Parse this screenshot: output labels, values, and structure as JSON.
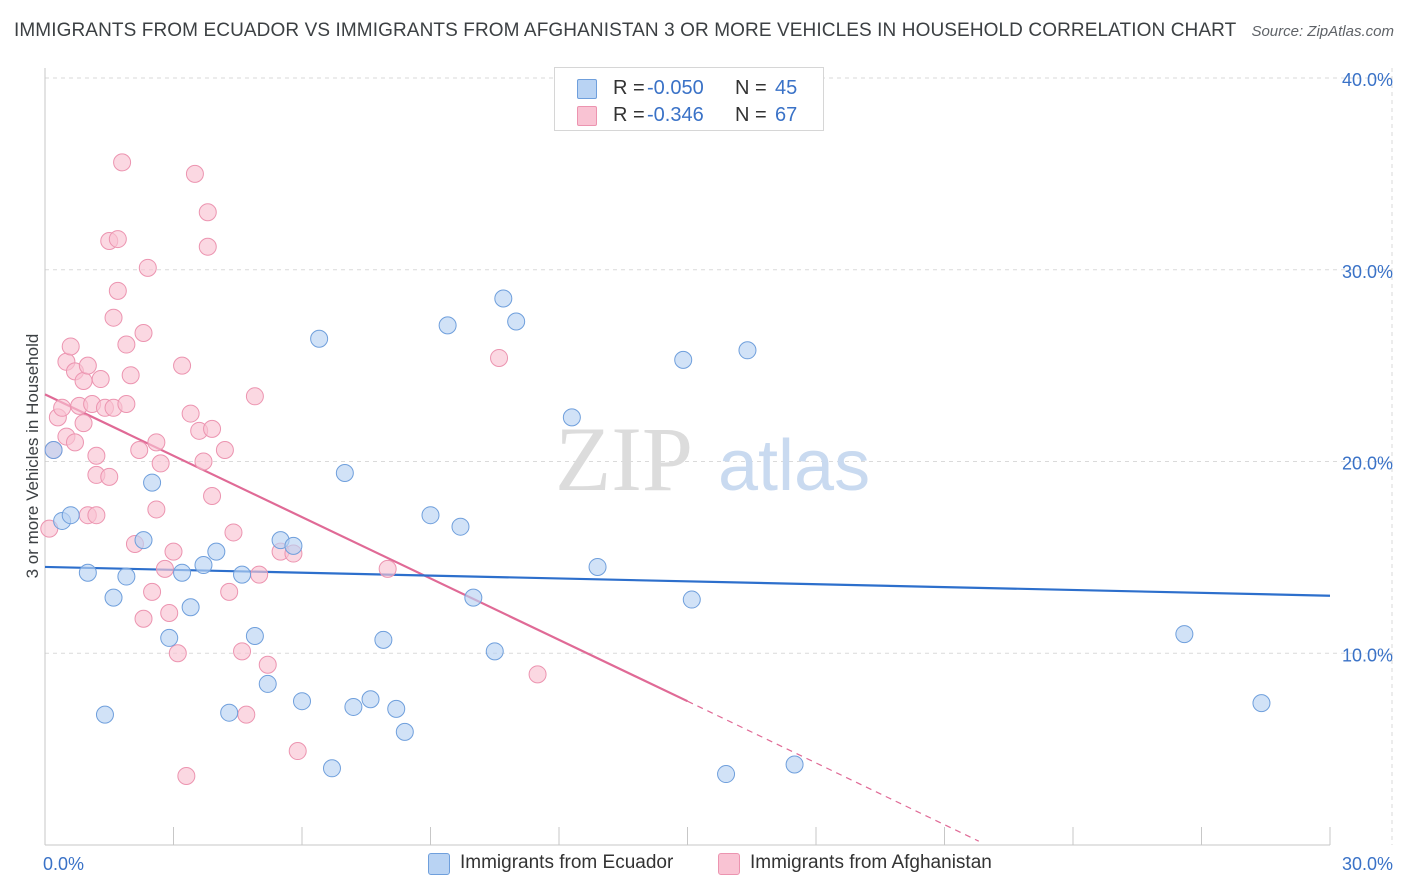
{
  "title": "IMMIGRANTS FROM ECUADOR VS IMMIGRANTS FROM AFGHANISTAN 3 OR MORE VEHICLES IN HOUSEHOLD CORRELATION CHART",
  "source": "Source: ZipAtlas.com",
  "watermark": {
    "zip": "ZIP",
    "atlas": "atlas"
  },
  "legend": {
    "rows": [
      {
        "r_label": "R =",
        "r_value": "-0.050",
        "n_label": "N =",
        "n_value": "45",
        "color": "#a9c8f0"
      },
      {
        "r_label": "R =",
        "r_value": "-0.346",
        "n_label": "N =",
        "n_value": "67",
        "color": "#f6b8cc"
      }
    ]
  },
  "bottom_legend": {
    "ecuador": "Immigrants from Ecuador",
    "afghanistan": "Immigrants from Afghanistan"
  },
  "colors": {
    "ecuador_fill": "#b9d3f3",
    "ecuador_stroke": "#6f9fdc",
    "ecuador_line": "#2d6fcc",
    "afghanistan_fill": "#f9c3d3",
    "afghanistan_stroke": "#ec94b0",
    "afghanistan_line": "#e06a96",
    "tick_text": "#3a72c7",
    "grid": "#dadada"
  },
  "chart_data": {
    "type": "scatter",
    "title": "IMMIGRANTS FROM ECUADOR VS IMMIGRANTS FROM AFGHANISTAN 3 OR MORE VEHICLES IN HOUSEHOLD CORRELATION CHART",
    "xlabel": "",
    "ylabel": "3 or more Vehicles in Household",
    "xlim": [
      0,
      30
    ],
    "ylim": [
      0,
      40
    ],
    "x_ticks_labels": [
      "0.0%",
      "30.0%"
    ],
    "y_ticks": [
      10,
      20,
      30,
      40
    ],
    "y_ticks_labels": [
      "10.0%",
      "20.0%",
      "30.0%",
      "40.0%"
    ],
    "grid": true,
    "legend_position": "top-center",
    "series": [
      {
        "name": "Immigrants from Ecuador",
        "trend": {
          "x": [
            0,
            30
          ],
          "y": [
            14.5,
            13.0
          ]
        },
        "points": [
          [
            0.2,
            20.6
          ],
          [
            0.4,
            16.9
          ],
          [
            1.0,
            14.2
          ],
          [
            1.4,
            6.8
          ],
          [
            1.6,
            12.9
          ],
          [
            1.9,
            14.0
          ],
          [
            2.3,
            15.9
          ],
          [
            2.5,
            18.9
          ],
          [
            2.9,
            10.8
          ],
          [
            3.2,
            14.2
          ],
          [
            3.4,
            12.4
          ],
          [
            3.7,
            14.6
          ],
          [
            4.0,
            15.3
          ],
          [
            4.3,
            6.9
          ],
          [
            4.6,
            14.1
          ],
          [
            4.9,
            10.9
          ],
          [
            5.2,
            8.4
          ],
          [
            5.5,
            15.9
          ],
          [
            5.8,
            15.6
          ],
          [
            6.0,
            7.5
          ],
          [
            6.4,
            26.4
          ],
          [
            6.7,
            4.0
          ],
          [
            7.0,
            19.4
          ],
          [
            7.2,
            7.2
          ],
          [
            7.6,
            7.6
          ],
          [
            7.9,
            10.7
          ],
          [
            8.2,
            7.1
          ],
          [
            8.4,
            5.9
          ],
          [
            9.0,
            17.2
          ],
          [
            9.4,
            27.1
          ],
          [
            9.7,
            16.6
          ],
          [
            10.0,
            12.9
          ],
          [
            10.5,
            10.1
          ],
          [
            10.7,
            28.5
          ],
          [
            11.0,
            27.3
          ],
          [
            12.3,
            22.3
          ],
          [
            12.9,
            14.5
          ],
          [
            14.9,
            25.3
          ],
          [
            15.1,
            12.8
          ],
          [
            15.9,
            3.7
          ],
          [
            16.4,
            25.8
          ],
          [
            17.5,
            4.2
          ],
          [
            26.6,
            11.0
          ],
          [
            28.4,
            7.4
          ],
          [
            0.6,
            17.2
          ]
        ]
      },
      {
        "name": "Immigrants from Afghanistan",
        "trend": {
          "x": [
            0,
            15
          ],
          "y": [
            23.5,
            7.5
          ]
        },
        "trend_dashed": {
          "x": [
            15,
            21.8
          ],
          "y": [
            7.5,
            0.2
          ]
        },
        "points": [
          [
            0.1,
            16.5
          ],
          [
            0.2,
            20.6
          ],
          [
            0.3,
            22.3
          ],
          [
            0.4,
            22.8
          ],
          [
            0.5,
            21.3
          ],
          [
            0.5,
            25.2
          ],
          [
            0.6,
            26.0
          ],
          [
            0.7,
            24.7
          ],
          [
            0.7,
            21.0
          ],
          [
            0.8,
            22.9
          ],
          [
            0.9,
            24.2
          ],
          [
            0.9,
            22.0
          ],
          [
            1.0,
            17.2
          ],
          [
            1.0,
            25.0
          ],
          [
            1.1,
            23.0
          ],
          [
            1.2,
            19.3
          ],
          [
            1.2,
            20.3
          ],
          [
            1.3,
            24.3
          ],
          [
            1.4,
            22.8
          ],
          [
            1.5,
            31.5
          ],
          [
            1.5,
            19.2
          ],
          [
            1.6,
            22.8
          ],
          [
            1.6,
            27.5
          ],
          [
            1.7,
            31.6
          ],
          [
            1.7,
            28.9
          ],
          [
            1.8,
            35.6
          ],
          [
            1.9,
            26.1
          ],
          [
            1.9,
            23.0
          ],
          [
            2.0,
            24.5
          ],
          [
            2.1,
            15.7
          ],
          [
            2.2,
            20.6
          ],
          [
            2.3,
            11.8
          ],
          [
            2.3,
            26.7
          ],
          [
            2.4,
            30.1
          ],
          [
            2.5,
            13.2
          ],
          [
            2.6,
            21.0
          ],
          [
            2.6,
            17.5
          ],
          [
            2.7,
            19.9
          ],
          [
            2.8,
            14.4
          ],
          [
            2.9,
            12.1
          ],
          [
            3.0,
            15.3
          ],
          [
            3.1,
            10.0
          ],
          [
            3.2,
            25.0
          ],
          [
            3.3,
            3.6
          ],
          [
            3.4,
            22.5
          ],
          [
            3.5,
            35.0
          ],
          [
            3.6,
            21.6
          ],
          [
            3.7,
            20.0
          ],
          [
            3.8,
            33.0
          ],
          [
            3.8,
            31.2
          ],
          [
            3.9,
            18.2
          ],
          [
            3.9,
            21.7
          ],
          [
            4.2,
            20.6
          ],
          [
            4.3,
            13.2
          ],
          [
            4.4,
            16.3
          ],
          [
            4.6,
            10.1
          ],
          [
            4.7,
            6.8
          ],
          [
            4.9,
            23.4
          ],
          [
            5.0,
            14.1
          ],
          [
            5.2,
            9.4
          ],
          [
            5.5,
            15.3
          ],
          [
            5.8,
            15.2
          ],
          [
            5.9,
            4.9
          ],
          [
            8.0,
            14.4
          ],
          [
            10.6,
            25.4
          ],
          [
            11.5,
            8.9
          ],
          [
            1.2,
            17.2
          ]
        ]
      }
    ]
  }
}
